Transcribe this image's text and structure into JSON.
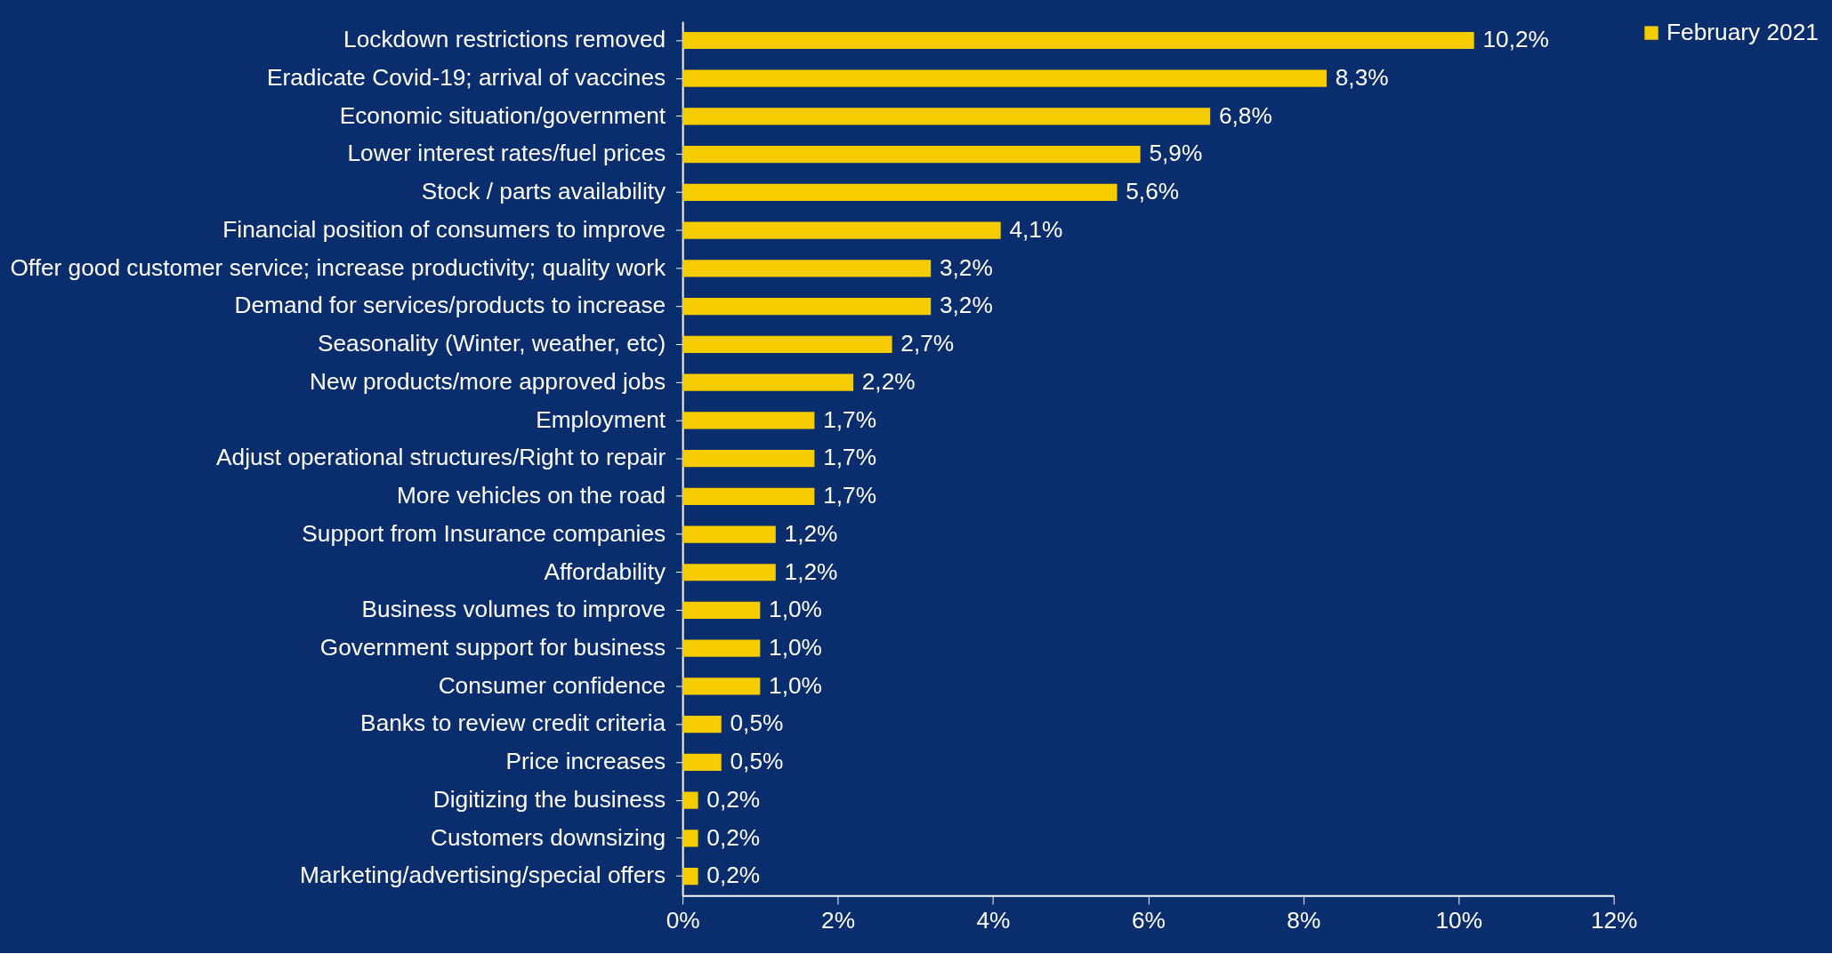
{
  "chart_data": {
    "type": "bar",
    "orientation": "horizontal",
    "categories": [
      "Lockdown restrictions removed",
      "Eradicate Covid-19; arrival of vaccines",
      "Economic situation/government",
      "Lower interest rates/fuel prices",
      "Stock / parts availability",
      "Financial position of consumers to improve",
      "Offer good customer service; increase productivity; quality work",
      "Demand for services/products to increase",
      "Seasonality (Winter, weather, etc)",
      "New products/more approved jobs",
      "Employment",
      "Adjust operational structures/Right to repair",
      "More vehicles on the road",
      "Support from Insurance companies",
      "Affordability",
      "Business volumes to improve",
      "Government support for business",
      "Consumer confidence",
      "Banks to review credit criteria",
      "Price increases",
      "Digitizing the business",
      "Customers downsizing",
      "Marketing/advertising/special offers"
    ],
    "series": [
      {
        "name": "February 2021",
        "color": "#f5cc00",
        "values": [
          10.2,
          8.3,
          6.8,
          5.9,
          5.6,
          4.1,
          3.2,
          3.2,
          2.7,
          2.2,
          1.7,
          1.7,
          1.7,
          1.2,
          1.2,
          1.0,
          1.0,
          1.0,
          0.5,
          0.5,
          0.2,
          0.2,
          0.2
        ],
        "value_labels": [
          "10,2%",
          "8,3%",
          "6,8%",
          "5,9%",
          "5,6%",
          "4,1%",
          "3,2%",
          "3,2%",
          "2,7%",
          "2,2%",
          "1,7%",
          "1,7%",
          "1,7%",
          "1,2%",
          "1,2%",
          "1,0%",
          "1,0%",
          "1,0%",
          "0,5%",
          "0,5%",
          "0,2%",
          "0,2%",
          "0,2%"
        ]
      }
    ],
    "xlim": [
      0,
      12
    ],
    "xticks": [
      {
        "value": 0,
        "label": "0%"
      },
      {
        "value": 2,
        "label": "2%"
      },
      {
        "value": 4,
        "label": "4%"
      },
      {
        "value": 6,
        "label": "6%"
      },
      {
        "value": 8,
        "label": "8%"
      },
      {
        "value": 10,
        "label": "10%"
      },
      {
        "value": 12,
        "label": "12%"
      }
    ],
    "grid": false,
    "legend": "right"
  }
}
